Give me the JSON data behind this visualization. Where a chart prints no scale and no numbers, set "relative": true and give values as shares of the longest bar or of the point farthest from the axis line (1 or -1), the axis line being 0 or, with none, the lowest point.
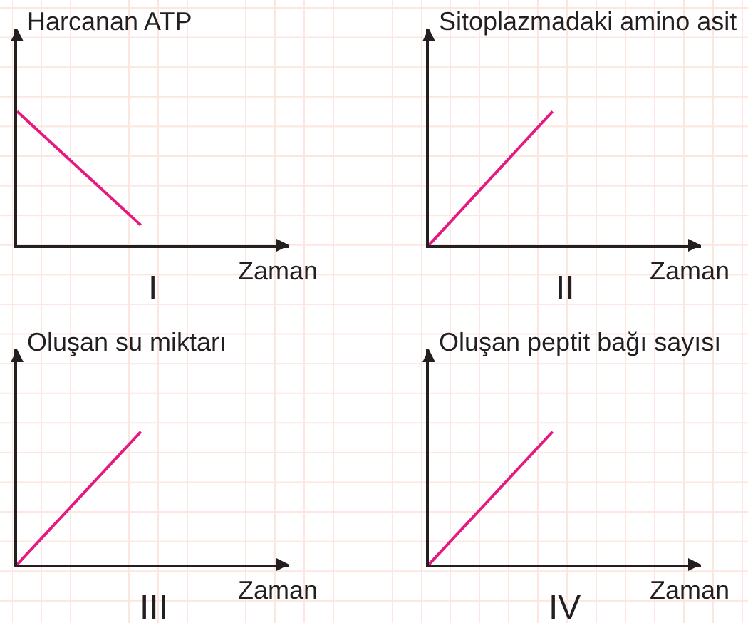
{
  "chart_data": [
    {
      "type": "line",
      "ylabel": "Harcanan ATP",
      "xlabel": "Zaman",
      "annotations": [
        "I"
      ],
      "categories": [
        null,
        null
      ],
      "values": [
        1,
        0.15
      ],
      "color": "#e5197f",
      "relative": true
    },
    {
      "type": "line",
      "ylabel": "Sitoplazmadaki amino asit",
      "xlabel": "Zaman",
      "annotations": [
        "II"
      ],
      "categories": [
        null,
        null
      ],
      "values": [
        0,
        1
      ],
      "color": "#e5197f",
      "relative": true
    },
    {
      "type": "line",
      "ylabel": "Oluşan su miktarı",
      "xlabel": "Zaman",
      "annotations": [
        "III"
      ],
      "categories": [
        null,
        null
      ],
      "values": [
        0,
        1
      ],
      "color": "#e5197f",
      "relative": true
    },
    {
      "type": "line",
      "ylabel": "Oluşan peptit bağı sayısı",
      "xlabel": "Zaman",
      "annotations": [
        "IV"
      ],
      "categories": [
        null,
        null
      ],
      "values": [
        0,
        1
      ],
      "color": "#e5197f",
      "relative": true
    }
  ]
}
